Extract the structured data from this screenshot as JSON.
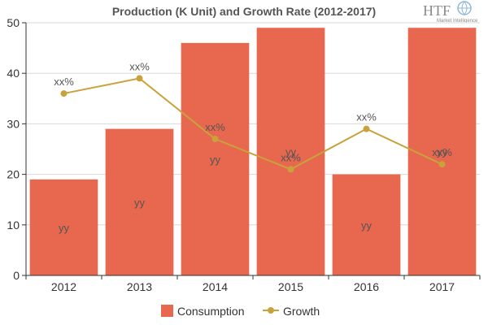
{
  "chart_data": {
    "type": "bar",
    "title": "Production (K Unit) and Growth Rate (2012-2017)",
    "categories": [
      "2012",
      "2013",
      "2014",
      "2015",
      "2016",
      "2017"
    ],
    "series": [
      {
        "name": "Consumption",
        "type": "bar",
        "color": "#e8674f",
        "values": [
          19,
          29,
          46,
          49,
          20,
          49
        ],
        "labels": [
          "yy",
          "yy",
          "yy",
          "yy",
          "yy",
          "yy"
        ]
      },
      {
        "name": "Growth",
        "type": "line",
        "color": "#c9a23c",
        "values": [
          36,
          39,
          27,
          21,
          29,
          22
        ],
        "labels": [
          "xx%",
          "xx%",
          "xx%",
          "xx%",
          "xx%",
          "xx%"
        ]
      }
    ],
    "ylim": [
      0,
      50
    ],
    "yticks": [
      0,
      10,
      20,
      30,
      40,
      50
    ],
    "grid": true,
    "legend": "bottom",
    "xlabel": "",
    "ylabel": ""
  },
  "logo": {
    "main": "HTF",
    "sub": "Market Intelligence"
  }
}
